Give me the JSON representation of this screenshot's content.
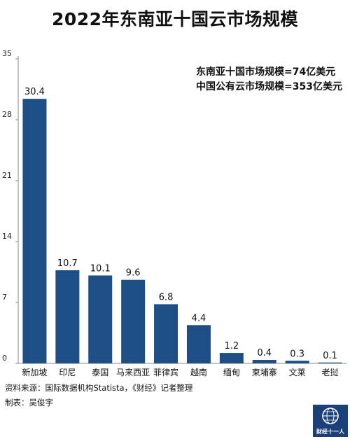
{
  "title": "2022年东南亚十国云市场规模",
  "annotations": [
    "东南亚十国市场规模=74亿美元",
    "中国公有云市场规模=353亿美元"
  ],
  "source": "资料来源：国际数据机构Statista，《财经》记者整理",
  "maker": "制表：吴俊宇",
  "logo_text": "财经十一人",
  "colors": {
    "bar": "#1d4f86",
    "axis": "#888888",
    "logo_bg": "#1b3f78"
  },
  "chart_data": {
    "type": "bar",
    "title": "2022年东南亚十国云市场规模",
    "categories": [
      "新加坡",
      "印尼",
      "泰国",
      "马来西亚",
      "菲律宾",
      "越南",
      "缅甸",
      "柬埔寨",
      "文莱",
      "老挝"
    ],
    "values": [
      30.4,
      10.7,
      10.1,
      9.6,
      6.8,
      4.4,
      1.2,
      0.4,
      0.3,
      0.1
    ],
    "value_labels": [
      "30.4",
      "10.7",
      "10.1",
      "9.6",
      "6.8",
      "4.4",
      "1.2",
      "0.4",
      "0.3",
      "0.1"
    ],
    "yticks": [
      0,
      7,
      14,
      21,
      28,
      35
    ],
    "ylim": [
      0,
      35
    ],
    "xlabel": "",
    "ylabel": "",
    "grid": false,
    "legend": "none"
  }
}
